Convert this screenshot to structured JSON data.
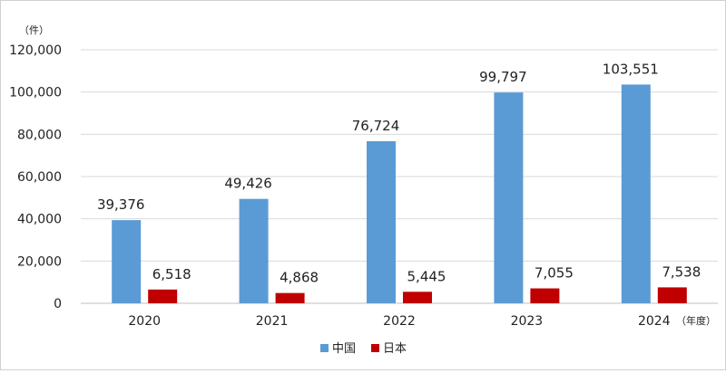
{
  "chart_data": {
    "type": "bar",
    "categories": [
      "2020",
      "2021",
      "2022",
      "2023",
      "2024"
    ],
    "series": [
      {
        "name": "中国",
        "values": [
          39376,
          49426,
          76724,
          99797,
          103551
        ],
        "color": "#5b9bd5"
      },
      {
        "name": "日本",
        "values": [
          6518,
          4868,
          5445,
          7055,
          7538
        ],
        "color": "#c00000"
      }
    ],
    "data_labels": {
      "中国": [
        "39,376",
        "49,426",
        "76,724",
        "99,797",
        "103,551"
      ],
      "日本": [
        "6,518",
        "4,868",
        "5,445",
        "7,055",
        "7,538"
      ]
    },
    "y_unit": "（件）",
    "x_unit": "（年度）",
    "ylim": [
      0,
      120000
    ],
    "yticks": [
      0,
      20000,
      40000,
      60000,
      80000,
      100000,
      120000
    ],
    "ytick_labels": [
      "0",
      "20,000",
      "40,000",
      "60,000",
      "80,000",
      "100,000",
      "120,000"
    ],
    "grid": true,
    "grid_color": "#d9d9d9",
    "legend_position": "bottom"
  }
}
